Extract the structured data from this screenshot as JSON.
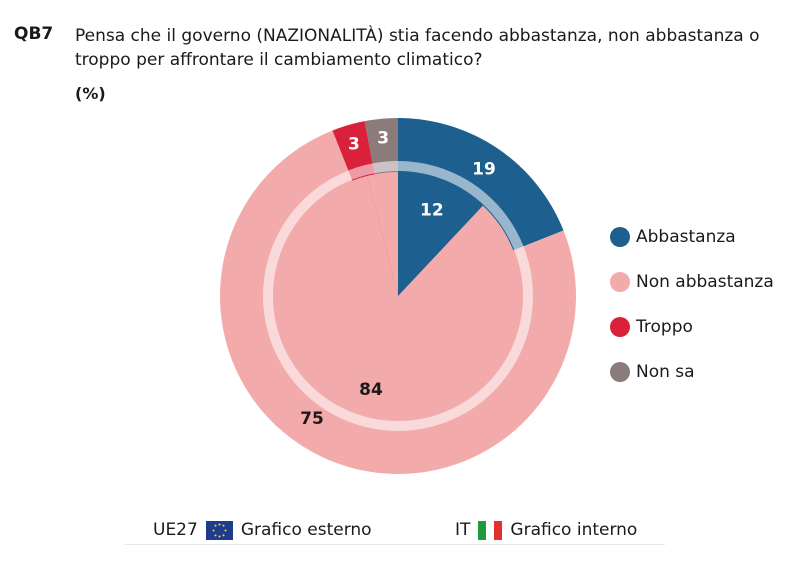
{
  "question": {
    "code": "QB7",
    "text": "Pensa che il governo (NAZIONALITÀ) stia facendo abbastanza, non abbastanza o troppo per affrontare il cambiamento climatico?",
    "unit": "(%)"
  },
  "chart_data": {
    "type": "pie",
    "categories": [
      "Abbastanza",
      "Non abbastanza",
      "Troppo",
      "Non sa"
    ],
    "colors": [
      "#1d5f8f",
      "#f2aaaa",
      "#d9213a",
      "#8c7b7b"
    ],
    "series": [
      {
        "name": "Grafico esterno",
        "ring": "outer",
        "values": [
          19,
          75,
          3,
          3
        ]
      },
      {
        "name": "Grafico interno",
        "ring": "inner",
        "values": [
          12,
          84,
          null,
          null
        ]
      }
    ],
    "legend_position": "right"
  },
  "legend": {
    "items": [
      {
        "label": "Abbastanza",
        "color": "#1d5f8f"
      },
      {
        "label": "Non abbastanza",
        "color": "#f2aaaa"
      },
      {
        "label": "Troppo",
        "color": "#d9213a"
      },
      {
        "label": "Non sa",
        "color": "#8c7b7b"
      }
    ]
  },
  "footer": {
    "outer_label": "UE27",
    "outer_text": "Grafico esterno",
    "outer_icon": "eu-flag-icon",
    "inner_label": "IT",
    "inner_text": "Grafico interno",
    "inner_icon": "italy-flag-icon"
  }
}
